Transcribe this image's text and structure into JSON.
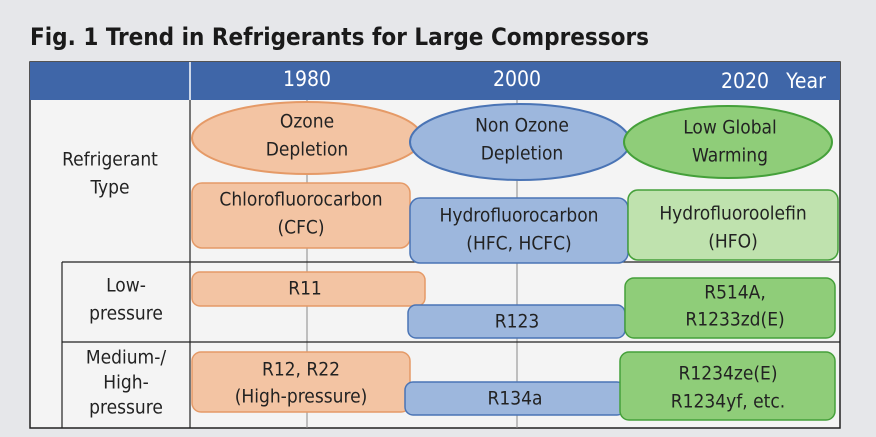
{
  "title": "Fig. 1  Trend in Refrigerants for Large Compressors",
  "timeline": {
    "years": [
      "1980",
      "2000",
      "2020"
    ],
    "unit": "Year"
  },
  "row_labels": [
    [
      "Refrigerant",
      "Type"
    ],
    [
      "Low-",
      "pressure"
    ],
    [
      "Medium-/",
      "High-",
      "pressure"
    ]
  ],
  "eras": [
    {
      "label": [
        "Ozone",
        "Depletion"
      ],
      "type": [
        "Chlorofluorocarbon",
        "(CFC)"
      ],
      "low": [
        "R11"
      ],
      "medium": [
        "R12, R22",
        "(High-pressure)"
      ]
    },
    {
      "label": [
        "Non Ozone",
        "Depletion"
      ],
      "type": [
        "Hydrofluorocarbon",
        "(HFC, HCFC)"
      ],
      "low": [
        "R123"
      ],
      "medium": [
        "R134a"
      ]
    },
    {
      "label": [
        "Low Global",
        "Warming"
      ],
      "type": [
        "Hydrofluoroolefin",
        "(HFO)"
      ],
      "low": [
        "R514A,",
        "R1233zd(E)"
      ],
      "medium": [
        "R1234ze(E)",
        "R1234yf, etc."
      ]
    }
  ]
}
